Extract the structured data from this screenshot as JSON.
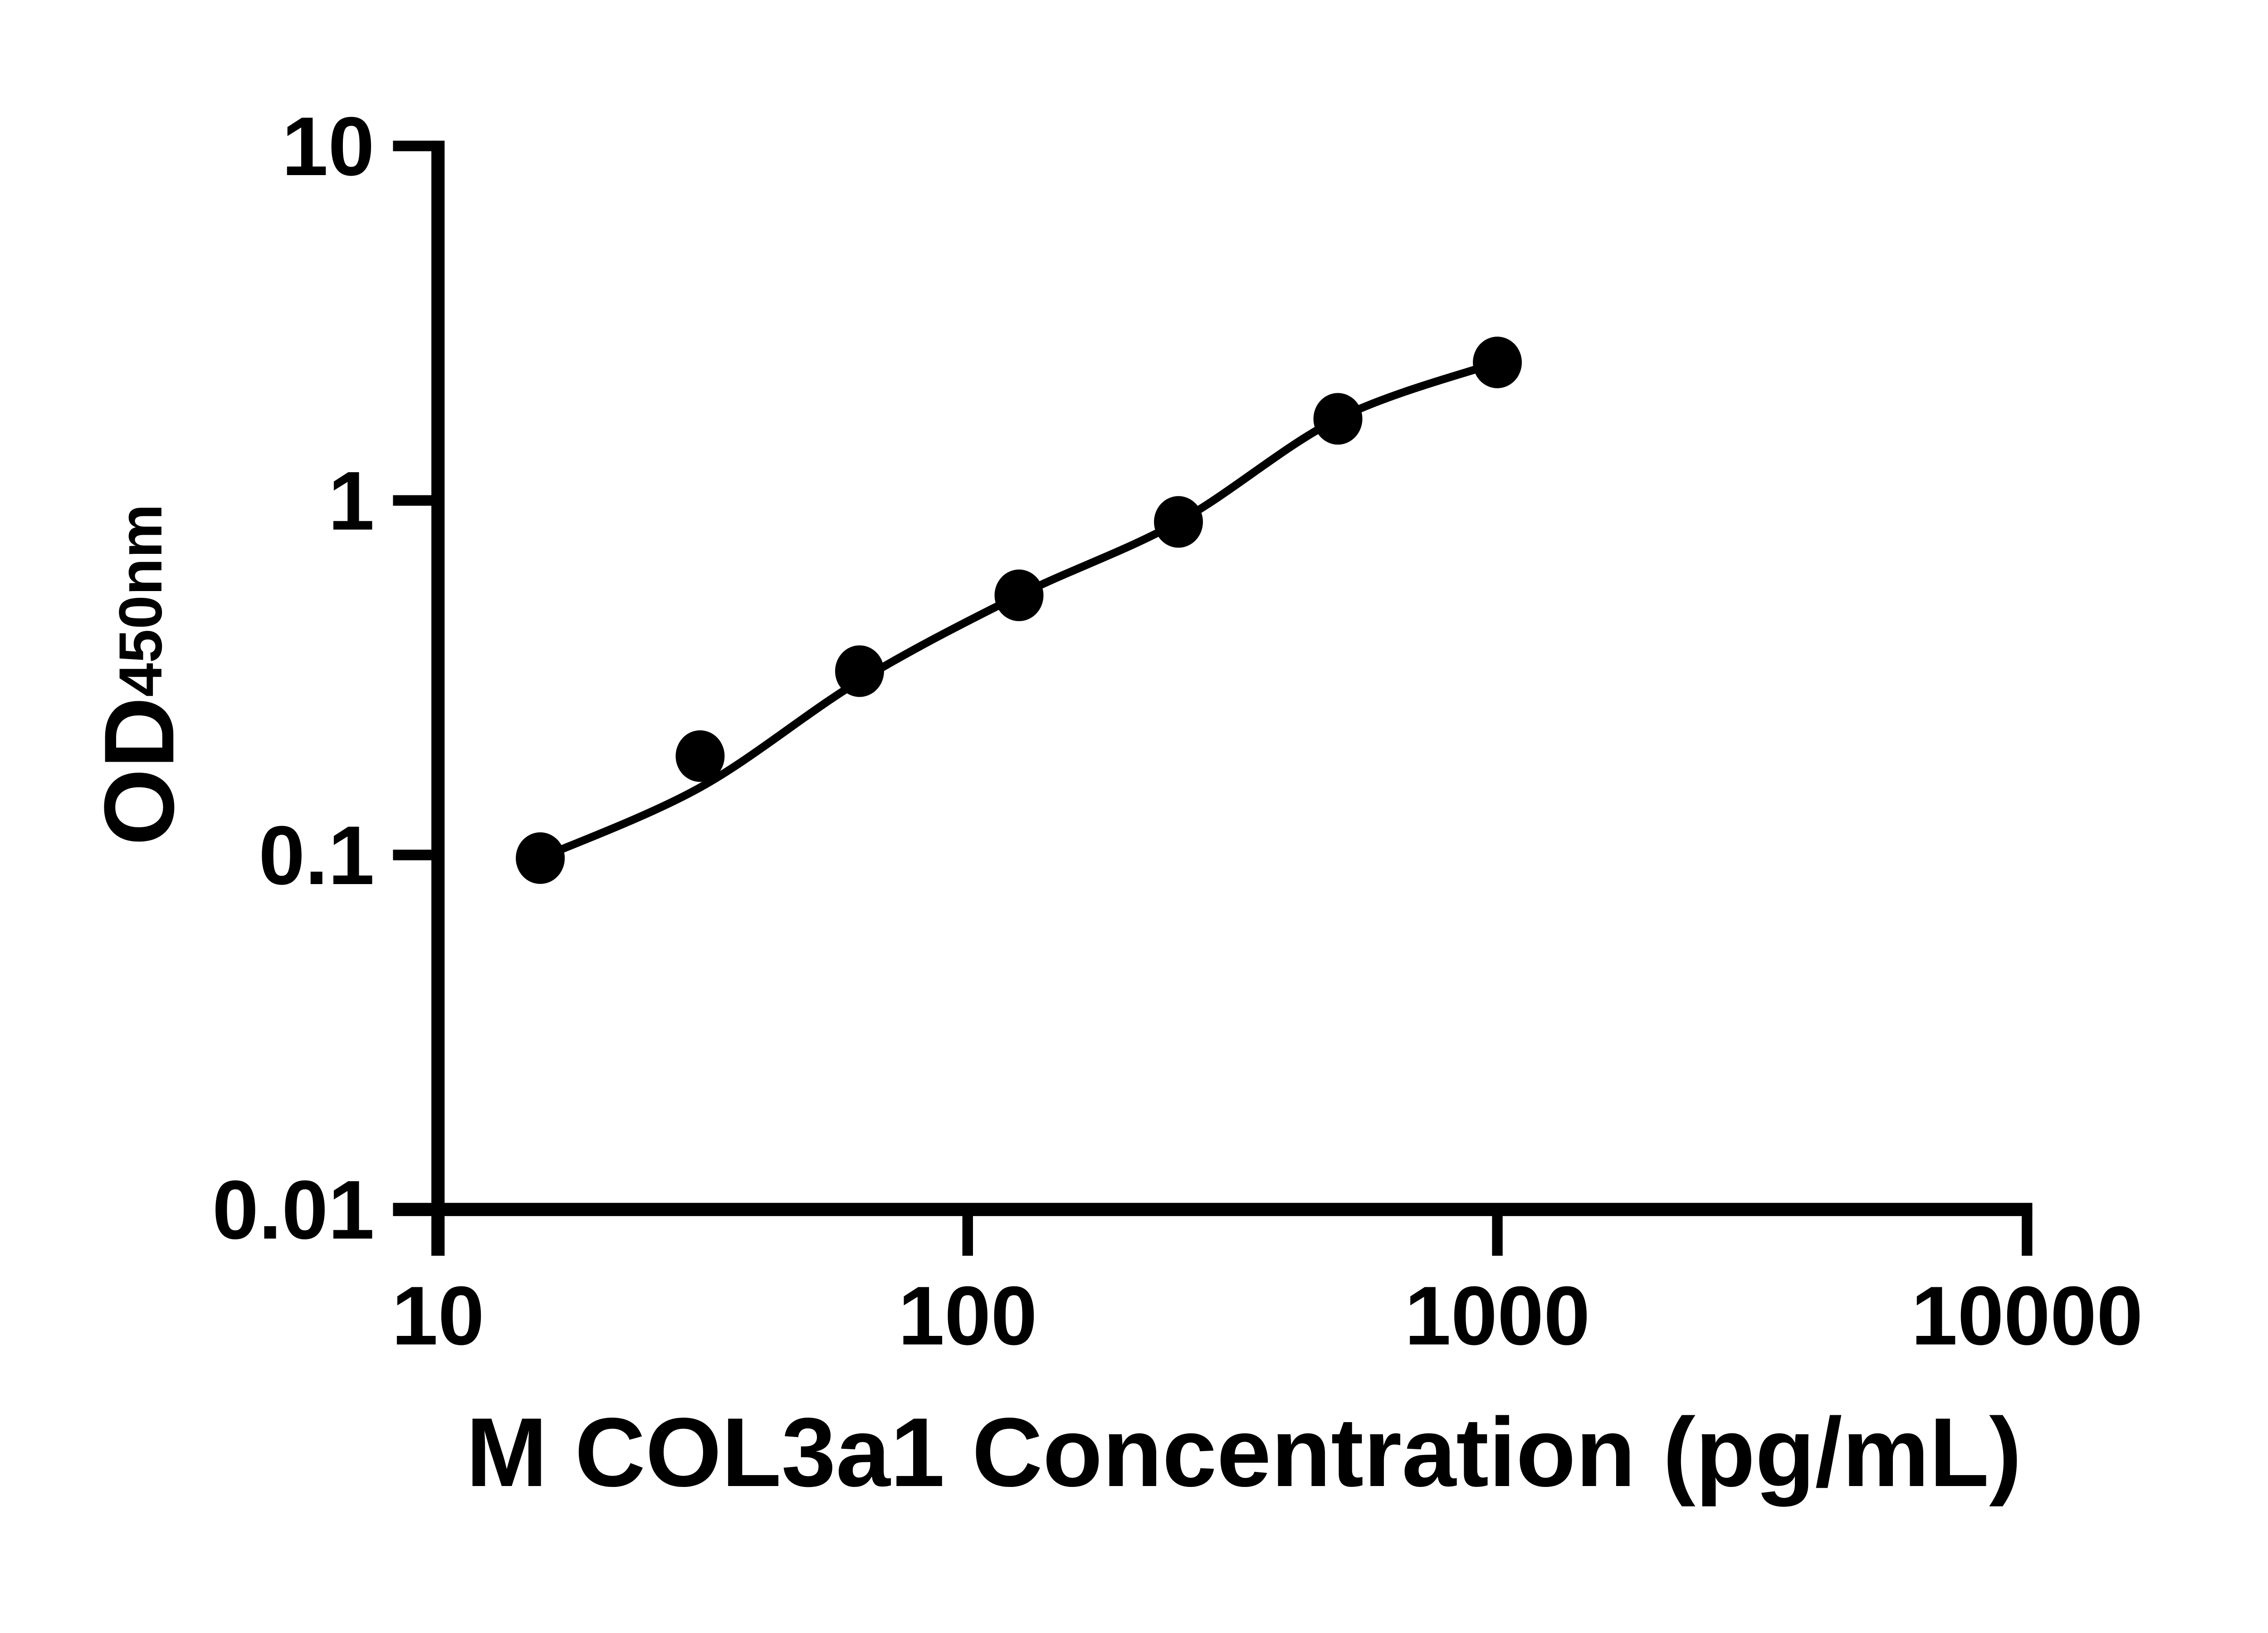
{
  "figure": {
    "background_color": "#ffffff",
    "ink_color": "#000000",
    "description": "ELISA standard curve, log-log scatter plot with fitted line"
  },
  "chart_data": {
    "type": "scatter",
    "title": "",
    "xlabel": "M COL3a1 Concentration (pg/mL)",
    "ylabel": "OD",
    "ylabel_subscript": "450nm",
    "x_scale": "log10",
    "y_scale": "log10",
    "xlim": [
      10,
      10000
    ],
    "ylim": [
      0.01,
      10
    ],
    "grid": false,
    "legend_position": "none",
    "x_ticks": [
      {
        "value": 10,
        "label": "10"
      },
      {
        "value": 100,
        "label": "100"
      },
      {
        "value": 1000,
        "label": "1000"
      },
      {
        "value": 10000,
        "label": "10000"
      }
    ],
    "y_ticks": [
      {
        "value": 10,
        "label": "10"
      },
      {
        "value": 1,
        "label": "1"
      },
      {
        "value": 0.1,
        "label": "0.1"
      },
      {
        "value": 0.01,
        "label": "0.01"
      }
    ],
    "series": [
      {
        "name": "standard-curve",
        "marker": "filled-circle",
        "color": "#000000",
        "points": [
          {
            "x": 15.6,
            "y": 0.098
          },
          {
            "x": 31.25,
            "y": 0.19
          },
          {
            "x": 62.5,
            "y": 0.33
          },
          {
            "x": 125,
            "y": 0.54
          },
          {
            "x": 250,
            "y": 0.87
          },
          {
            "x": 500,
            "y": 1.7
          },
          {
            "x": 1000,
            "y": 2.45
          }
        ],
        "fit_line_od": [
          0.098,
          0.155,
          0.31,
          0.54,
          0.87,
          1.7,
          2.45
        ]
      }
    ]
  }
}
